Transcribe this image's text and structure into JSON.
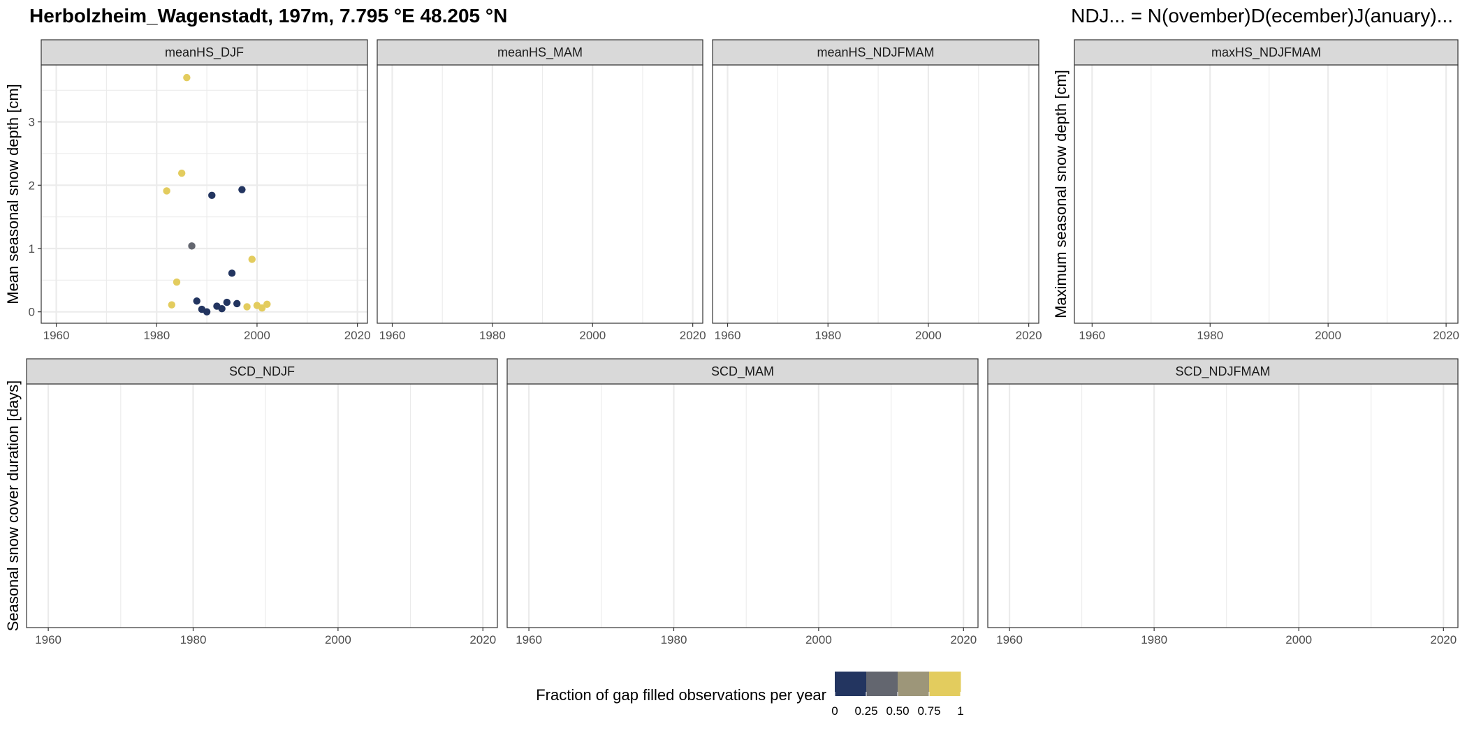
{
  "title": "Herbolzheim_Wagenstadt, 197m, 7.795 °E 48.205 °N",
  "subtitle": "NDJ... = N(ovember)D(ecember)J(anuary)...",
  "chart_data": [
    {
      "type": "scatter",
      "panel": "meanHS_DJF",
      "ylabel": "Mean seasonal snow depth [cm]",
      "xlim": [
        1957,
        2022
      ],
      "ylim": [
        -0.18,
        3.9
      ],
      "x_ticks": [
        1960,
        1980,
        2000,
        2020
      ],
      "y_ticks": [
        0,
        1,
        2,
        3
      ],
      "points": [
        {
          "x": 1982,
          "y": 1.91,
          "fraction": 1.0
        },
        {
          "x": 1983,
          "y": 0.11,
          "fraction": 1.0
        },
        {
          "x": 1984,
          "y": 0.47,
          "fraction": 1.0
        },
        {
          "x": 1985,
          "y": 2.19,
          "fraction": 1.0
        },
        {
          "x": 1986,
          "y": 3.7,
          "fraction": 1.0
        },
        {
          "x": 1987,
          "y": 1.04,
          "fraction": 0.4
        },
        {
          "x": 1988,
          "y": 0.17,
          "fraction": 0.0
        },
        {
          "x": 1989,
          "y": 0.04,
          "fraction": 0.0
        },
        {
          "x": 1990,
          "y": 0.0,
          "fraction": 0.0
        },
        {
          "x": 1991,
          "y": 1.84,
          "fraction": 0.0
        },
        {
          "x": 1992,
          "y": 0.09,
          "fraction": 0.0
        },
        {
          "x": 1993,
          "y": 0.05,
          "fraction": 0.0
        },
        {
          "x": 1994,
          "y": 0.15,
          "fraction": 0.0
        },
        {
          "x": 1995,
          "y": 0.61,
          "fraction": 0.0
        },
        {
          "x": 1996,
          "y": 0.13,
          "fraction": 0.0
        },
        {
          "x": 1997,
          "y": 1.93,
          "fraction": 0.0
        },
        {
          "x": 1998,
          "y": 0.08,
          "fraction": 1.0
        },
        {
          "x": 1999,
          "y": 0.83,
          "fraction": 1.0
        },
        {
          "x": 2000,
          "y": 0.1,
          "fraction": 1.0
        },
        {
          "x": 2001,
          "y": 0.06,
          "fraction": 1.0
        },
        {
          "x": 2002,
          "y": 0.12,
          "fraction": 1.0
        }
      ]
    },
    {
      "type": "scatter",
      "panel": "meanHS_MAM",
      "xlim": [
        1957,
        2022
      ],
      "x_ticks": [
        1960,
        1980,
        2000,
        2020
      ],
      "points": []
    },
    {
      "type": "scatter",
      "panel": "meanHS_NDJFMAM",
      "xlim": [
        1957,
        2022
      ],
      "x_ticks": [
        1960,
        1980,
        2000,
        2020
      ],
      "points": []
    },
    {
      "type": "scatter",
      "panel": "maxHS_NDJFMAM",
      "ylabel": "Maximum seasonal snow depth [cm]",
      "xlim": [
        1957,
        2022
      ],
      "x_ticks": [
        1960,
        1980,
        2000,
        2020
      ],
      "points": []
    },
    {
      "type": "scatter",
      "panel": "SCD_NDJF",
      "ylabel": "Seasonal snow cover duration [days]",
      "xlim": [
        1957,
        2022
      ],
      "x_ticks": [
        1960,
        1980,
        2000,
        2020
      ],
      "points": []
    },
    {
      "type": "scatter",
      "panel": "SCD_MAM",
      "xlim": [
        1957,
        2022
      ],
      "x_ticks": [
        1960,
        1980,
        2000,
        2020
      ],
      "points": []
    },
    {
      "type": "scatter",
      "panel": "SCD_NDJFMAM",
      "xlim": [
        1957,
        2022
      ],
      "x_ticks": [
        1960,
        1980,
        2000,
        2020
      ],
      "points": []
    }
  ],
  "legend": {
    "title": "Fraction of gap filled observations per year",
    "ticks": [
      "0",
      "0.25",
      "0.50",
      "0.75",
      "1"
    ],
    "colors": [
      "#233560",
      "#63666f",
      "#9d9679",
      "#e3cc5e"
    ]
  }
}
